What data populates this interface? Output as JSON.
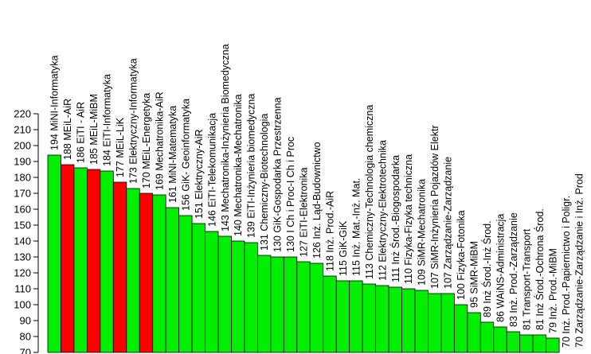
{
  "chart_data": {
    "type": "bar",
    "title": "",
    "xlabel": "",
    "ylabel": "",
    "ylim": [
      70,
      220
    ],
    "yticks": [
      70,
      80,
      90,
      100,
      110,
      120,
      130,
      140,
      150,
      160,
      170,
      180,
      190,
      200,
      210,
      220
    ],
    "grid": false,
    "colors": {
      "green": "#00ee00",
      "red": "#ff0000",
      "outline": "#000000"
    },
    "bars": [
      {
        "label": "194 MiNI-Informatyka",
        "value": 194,
        "color": "green"
      },
      {
        "label": "188 MEiL-AiR",
        "value": 188,
        "color": "red"
      },
      {
        "label": "186 EiTI - AiR",
        "value": 186,
        "color": "green"
      },
      {
        "label": "185 MEiL-MiBM",
        "value": 185,
        "color": "red"
      },
      {
        "label": "184 EiTI-Informatyka",
        "value": 184,
        "color": "green"
      },
      {
        "label": "177 MEiL-LiK",
        "value": 177,
        "color": "red"
      },
      {
        "label": "173 Elektryczny-Informatyka",
        "value": 173,
        "color": "green"
      },
      {
        "label": "170 MEiL-Energetyka",
        "value": 170,
        "color": "red"
      },
      {
        "label": "169 Mechatronika-AiR",
        "value": 169,
        "color": "green"
      },
      {
        "label": "161 MiNI-Matematyka",
        "value": 161,
        "color": "green"
      },
      {
        "label": "156 GiK- Geoinformatyka",
        "value": 156,
        "color": "green"
      },
      {
        "label": "151 Elektryczny-AiR",
        "value": 151,
        "color": "green"
      },
      {
        "label": "146 EiTI-Telekomunikacja",
        "value": 146,
        "color": "green"
      },
      {
        "label": "143 Mechatronika-Inżynieria Biomedyczna",
        "value": 143,
        "color": "green"
      },
      {
        "label": "140 Mechatronika-Mechatronika",
        "value": 140,
        "color": "green"
      },
      {
        "label": "139 EiTI-Inżynieria biomedyczna",
        "value": 139,
        "color": "green"
      },
      {
        "label": "131 Chemiczny-Biotechnologia",
        "value": 131,
        "color": "green"
      },
      {
        "label": "130 GiK-Gospodarka Przestrzenna",
        "value": 130,
        "color": "green"
      },
      {
        "label": "130 I Ch i Proc-I Ch i Proc",
        "value": 130,
        "color": "green"
      },
      {
        "label": "127 EiTI-Elektronika",
        "value": 127,
        "color": "green"
      },
      {
        "label": "126 Inż. Ląd-Budownictwo",
        "value": 126,
        "color": "green"
      },
      {
        "label": "118 Inż. Prod.-AiR",
        "value": 118,
        "color": "green"
      },
      {
        "label": "115 GiK-GiK",
        "value": 115,
        "color": "green"
      },
      {
        "label": "115 Inż. Mat.-Inż. Mat.",
        "value": 115,
        "color": "green"
      },
      {
        "label": "113 Chemiczny-Technologia chemiczna",
        "value": 113,
        "color": "green"
      },
      {
        "label": "112 Elektryczny-Elektrotechnika",
        "value": 112,
        "color": "green"
      },
      {
        "label": "111 Inż Środ.-Biogospodarka",
        "value": 111,
        "color": "green"
      },
      {
        "label": "110 Fizyka-Fizyka techniczna",
        "value": 110,
        "color": "green"
      },
      {
        "label": "109 SiMR-Mechatronika",
        "value": 109,
        "color": "green"
      },
      {
        "label": "107 SiMR-Inżynieria Pojazdów Elektr",
        "value": 107,
        "color": "green"
      },
      {
        "label": "107 Zarządzanie-Zarządzanie",
        "value": 107,
        "color": "green"
      },
      {
        "label": "100 Fizyka-Fotonika",
        "value": 100,
        "color": "green"
      },
      {
        "label": "95 SiMR-MiBM",
        "value": 95,
        "color": "green"
      },
      {
        "label": "89 Inż Środ.-Inż Środ.",
        "value": 89,
        "color": "green"
      },
      {
        "label": "86 WAiNS-Administracja",
        "value": 86,
        "color": "green"
      },
      {
        "label": "83 Inż. Prod.-Zarządzanie",
        "value": 83,
        "color": "green"
      },
      {
        "label": "81 Transport-Transport",
        "value": 81,
        "color": "green"
      },
      {
        "label": "81 Inż Środ.-Ochrona Środ.",
        "value": 81,
        "color": "green"
      },
      {
        "label": "79 Inż. Prod.-MiBM",
        "value": 79,
        "color": "green"
      },
      {
        "label": "70 Inż. Prod.-Papiernictwo i Poligr.",
        "value": 70,
        "color": "green"
      },
      {
        "label": "70 Zarządzanie-Zarządzanie i Inż. Prod",
        "value": 70,
        "color": "green"
      }
    ]
  }
}
